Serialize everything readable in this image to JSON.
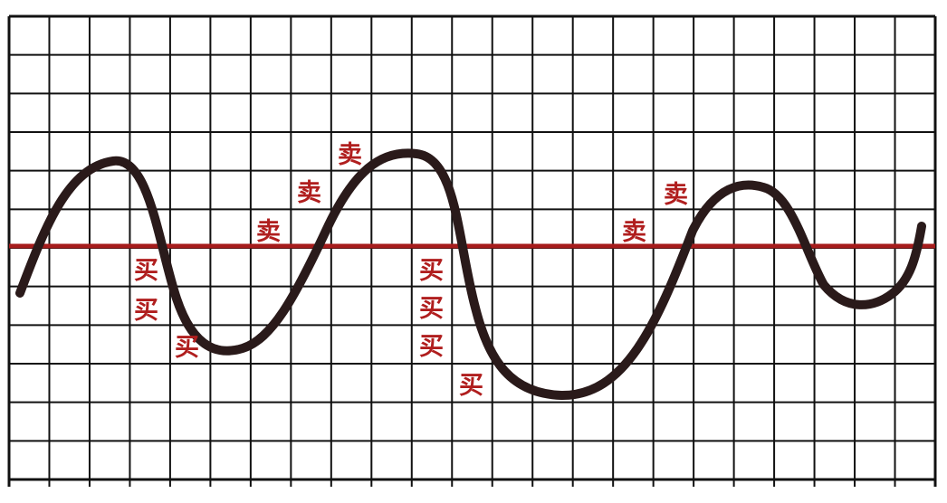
{
  "diagram": {
    "colors": {
      "background": "#ffffff",
      "grid": "#111111",
      "midline": "#a61c1c",
      "curve": "#2a1a1a",
      "label": "#b01e1e"
    },
    "buy_text": "买",
    "sell_text": "卖",
    "labels": [
      {
        "id": "sell-1",
        "kind": "sell"
      },
      {
        "id": "sell-2",
        "kind": "sell"
      },
      {
        "id": "sell-3",
        "kind": "sell"
      },
      {
        "id": "sell-4",
        "kind": "sell"
      },
      {
        "id": "sell-5",
        "kind": "sell"
      },
      {
        "id": "buy-1",
        "kind": "buy"
      },
      {
        "id": "buy-2",
        "kind": "buy"
      },
      {
        "id": "buy-3",
        "kind": "buy"
      },
      {
        "id": "buy-4",
        "kind": "buy"
      },
      {
        "id": "buy-5",
        "kind": "buy"
      },
      {
        "id": "buy-6",
        "kind": "buy"
      },
      {
        "id": "buy-7",
        "kind": "buy"
      }
    ]
  }
}
